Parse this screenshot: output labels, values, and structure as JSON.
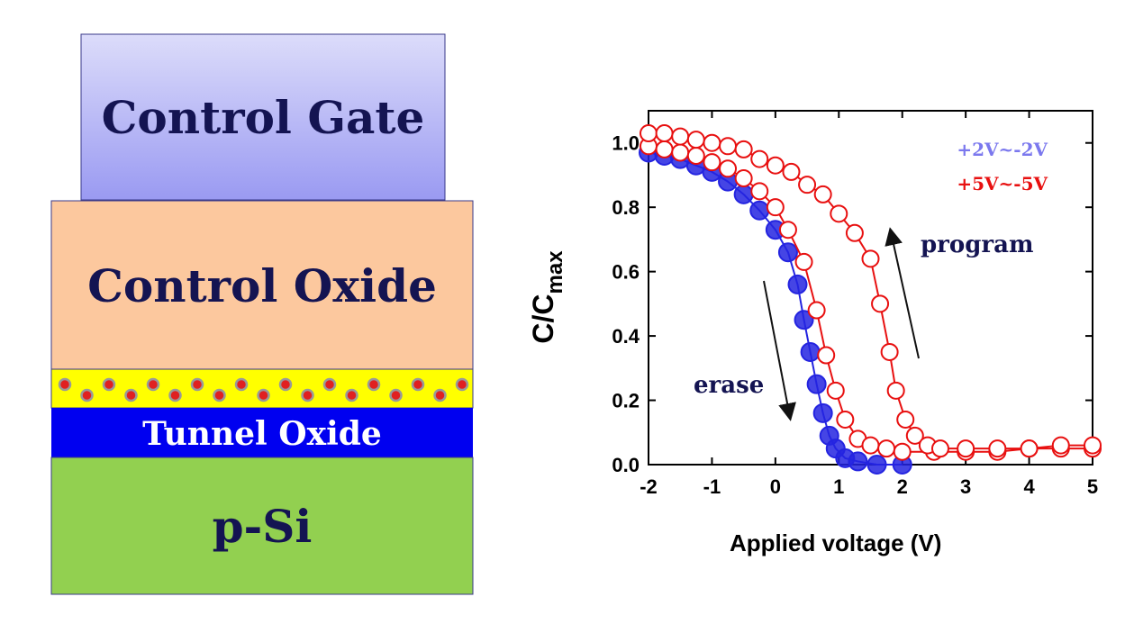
{
  "diagram": {
    "layers": [
      "Control Gate",
      "Control Oxide",
      "Tunnel Oxide",
      "p-Si"
    ]
  },
  "chart_data": {
    "type": "line",
    "x_label": "Applied voltage (V)",
    "y_label": "C/C",
    "y_label_sub": "max",
    "xlim": [
      -2,
      5
    ],
    "xticks": [
      -2,
      -1,
      0,
      1,
      2,
      3,
      4,
      5
    ],
    "ylim": [
      0,
      1.1
    ],
    "yticks": [
      {
        "value": 0,
        "label": "0.0"
      },
      0.2,
      0.4,
      0.6,
      0.8,
      {
        "value": 1,
        "label": "1.0"
      }
    ],
    "legend": "upper right",
    "annotations": [
      "program",
      "erase"
    ],
    "series": [
      {
        "name": "+2V~-2V",
        "color": "#2424e0",
        "legend_color": "#7b78ee",
        "filled": true,
        "x": [
          -2,
          -1.75,
          -1.5,
          -1.25,
          -1,
          -0.75,
          -0.5,
          -0.25,
          0,
          0.2,
          0.35,
          0.45,
          0.55,
          0.65,
          0.75,
          0.85,
          0.95,
          1.1,
          1.3,
          1.6,
          2
        ],
        "values": [
          0.97,
          0.96,
          0.95,
          0.93,
          0.91,
          0.88,
          0.84,
          0.79,
          0.73,
          0.66,
          0.56,
          0.45,
          0.35,
          0.25,
          0.16,
          0.09,
          0.05,
          0.02,
          0.01,
          0,
          0
        ]
      },
      {
        "name": "+5V~-5V",
        "color": "#e81010",
        "legend_color": "#e81010",
        "filled": false,
        "x": [
          -2,
          -1.75,
          -1.5,
          -1.25,
          -1,
          -0.75,
          -0.5,
          -0.25,
          0,
          0.2,
          0.45,
          0.65,
          0.8,
          0.95,
          1.1,
          1.3,
          1.5,
          1.75,
          2,
          2.5,
          3,
          3.5,
          4,
          4.5,
          5,
          null,
          -2,
          -1.75,
          -1.5,
          -1.25,
          -1,
          -0.75,
          -0.5,
          -0.25,
          0,
          0.25,
          0.5,
          0.75,
          1,
          1.25,
          1.5,
          1.65,
          1.8,
          1.9,
          2.05,
          2.2,
          2.4,
          2.6,
          3,
          3.5,
          4,
          4.5,
          5
        ],
        "values": [
          0.99,
          0.98,
          0.97,
          0.96,
          0.94,
          0.92,
          0.89,
          0.85,
          0.8,
          0.73,
          0.63,
          0.48,
          0.34,
          0.23,
          0.14,
          0.08,
          0.06,
          0.05,
          0.04,
          0.04,
          0.04,
          0.04,
          0.05,
          0.05,
          0.05,
          null,
          1.03,
          1.03,
          1.02,
          1.01,
          1,
          0.99,
          0.98,
          0.95,
          0.93,
          0.91,
          0.87,
          0.84,
          0.78,
          0.72,
          0.64,
          0.5,
          0.35,
          0.23,
          0.14,
          0.09,
          0.06,
          0.05,
          0.05,
          0.05,
          0.05,
          0.06,
          0.06
        ]
      }
    ]
  }
}
